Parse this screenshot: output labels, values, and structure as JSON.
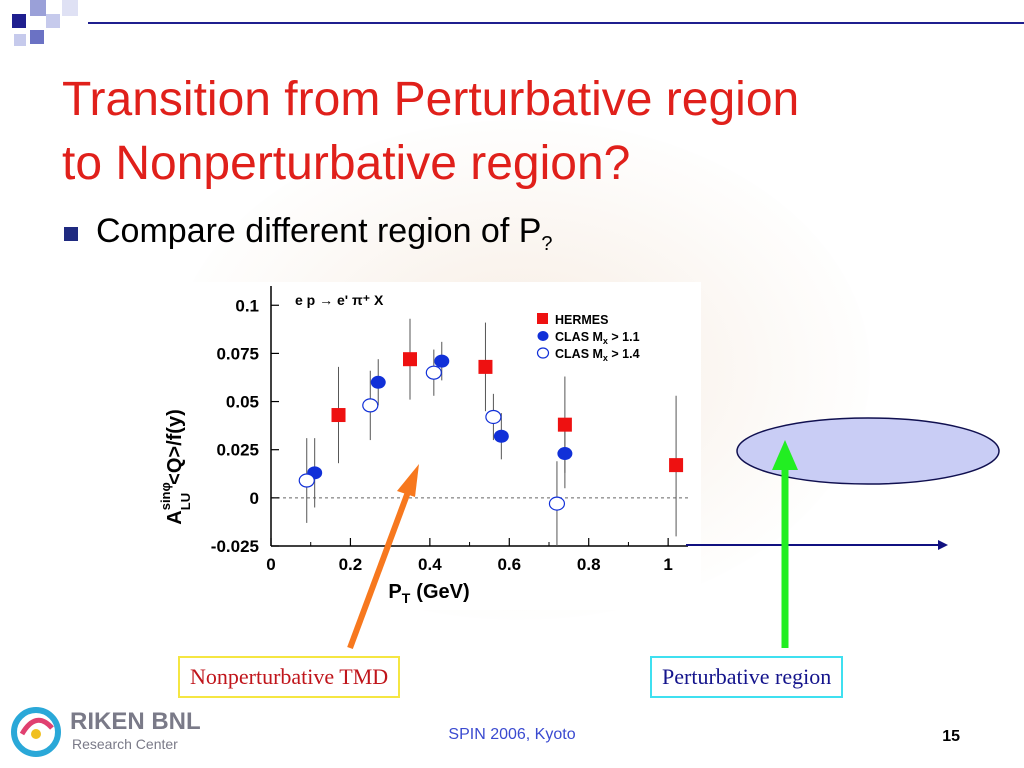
{
  "slide": {
    "title_line1": "Transition from Perturbative region",
    "title_line2": "to Nonperturbative region?",
    "bullet_text": "Compare different region of P",
    "bullet_subscript": "?",
    "label_nonperturbative": "Nonperturbative TMD",
    "label_perturbative": "Perturbative region",
    "footer": "SPIN 2006, Kyoto",
    "page_number": "15",
    "logo_name": "RIKEN BNL",
    "logo_sub": "Research Center"
  },
  "colors": {
    "title": "#e0201b",
    "bullet_square": "#1f2a80",
    "hermes": "#ee1111",
    "clas": "#1130d8",
    "arrow_orange": "#f7781e",
    "arrow_green": "#22ee22",
    "ellipse_fill": "#c9cdf5",
    "axis_arrow": "#101080"
  },
  "chart_data": {
    "type": "scatter",
    "reaction": "e p → e' π⁺ X",
    "xlabel": "P",
    "xlabel_sub": "T",
    "xlabel_unit": "(GeV)",
    "ylabel": "A",
    "ylabel_sup": "sinφ",
    "ylabel_sub": "LU",
    "ylabel_rest": "<Q>/f(y)",
    "xlim": [
      0,
      1.05
    ],
    "ylim": [
      -0.025,
      0.11
    ],
    "xticks": [
      0,
      0.2,
      0.4,
      0.6,
      0.8,
      1
    ],
    "xtick_labels": [
      "0",
      "0.2",
      "0.4",
      "0.6",
      "0.8",
      "1"
    ],
    "yticks": [
      -0.025,
      0,
      0.025,
      0.05,
      0.075,
      0.1
    ],
    "ytick_labels": [
      "-0.025",
      "0",
      "0.025",
      "0.05",
      "0.075",
      "0.1"
    ],
    "legend_position": "top-right",
    "series": [
      {
        "name": "HERMES",
        "marker": "filled-square",
        "points": [
          {
            "x": 0.17,
            "y": 0.043,
            "lo": 0.018,
            "hi": 0.068
          },
          {
            "x": 0.35,
            "y": 0.072,
            "lo": 0.051,
            "hi": 0.093
          },
          {
            "x": 0.54,
            "y": 0.068,
            "lo": 0.045,
            "hi": 0.091
          },
          {
            "x": 0.74,
            "y": 0.038,
            "lo": 0.013,
            "hi": 0.063
          },
          {
            "x": 1.02,
            "y": 0.017,
            "lo": -0.02,
            "hi": 0.053
          }
        ]
      },
      {
        "name": "CLAS M",
        "legend_sub": "x",
        "legend_suffix": " > 1.1",
        "marker": "filled-circle",
        "points": [
          {
            "x": 0.11,
            "y": 0.013,
            "lo": -0.005,
            "hi": 0.031
          },
          {
            "x": 0.27,
            "y": 0.06,
            "lo": 0.048,
            "hi": 0.072
          },
          {
            "x": 0.43,
            "y": 0.071,
            "lo": 0.061,
            "hi": 0.081
          },
          {
            "x": 0.58,
            "y": 0.032,
            "lo": 0.02,
            "hi": 0.044
          },
          {
            "x": 0.74,
            "y": 0.023,
            "lo": 0.005,
            "hi": 0.041
          }
        ]
      },
      {
        "name": "CLAS M",
        "legend_sub": "x",
        "legend_suffix": " > 1.4",
        "marker": "open-circle",
        "points": [
          {
            "x": 0.09,
            "y": 0.009,
            "lo": -0.013,
            "hi": 0.031
          },
          {
            "x": 0.25,
            "y": 0.048,
            "lo": 0.03,
            "hi": 0.066
          },
          {
            "x": 0.41,
            "y": 0.065,
            "lo": 0.053,
            "hi": 0.077
          },
          {
            "x": 0.56,
            "y": 0.042,
            "lo": 0.03,
            "hi": 0.054
          },
          {
            "x": 0.72,
            "y": -0.003,
            "lo": -0.025,
            "hi": 0.019
          }
        ]
      }
    ]
  }
}
